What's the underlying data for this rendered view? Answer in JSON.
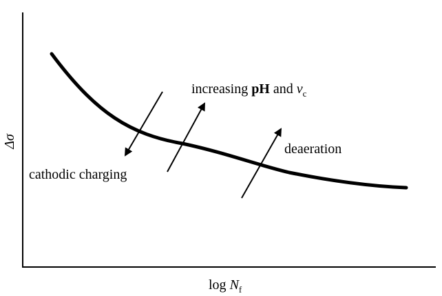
{
  "axes": {
    "y_label": "Δσ",
    "x_label_main": "log ",
    "x_label_var": "N",
    "x_label_sub": "f"
  },
  "annotations": {
    "cathodic": "cathodic charging",
    "increasing_main": "increasing ",
    "increasing_ph": "pH",
    "increasing_and": " and ",
    "increasing_var": "ν",
    "increasing_sub": "c",
    "deaeration": "deaeration"
  },
  "colors": {
    "ink": "#000000",
    "background": "#ffffff"
  }
}
